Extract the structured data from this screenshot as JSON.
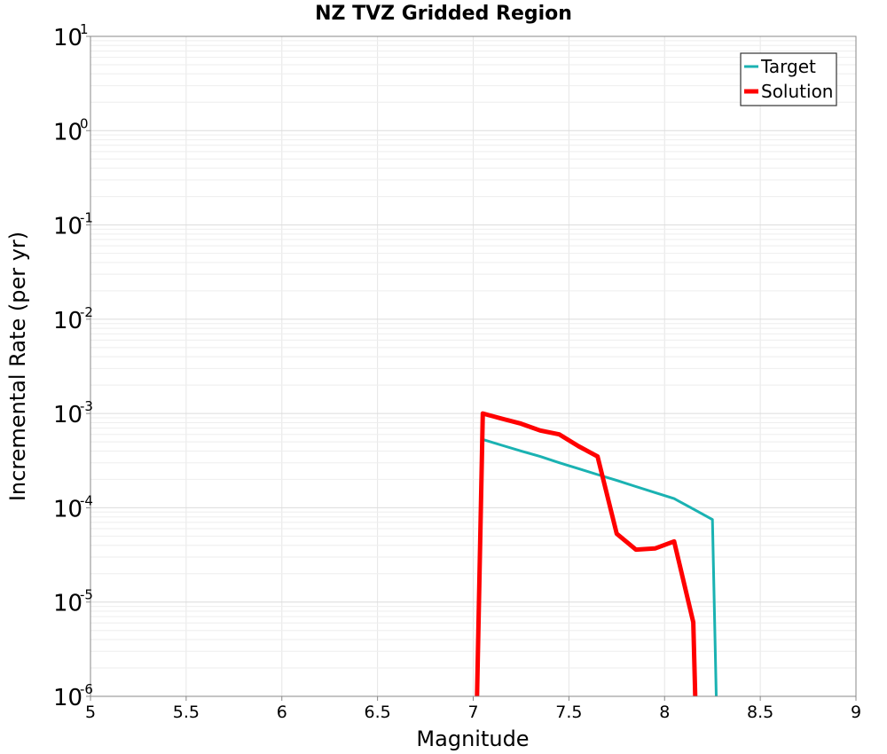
{
  "chart_data": {
    "type": "line",
    "title": "NZ TVZ Gridded Region",
    "xlabel": "Magnitude",
    "ylabel": "Incremental Rate (per yr)",
    "xlim": [
      5,
      9
    ],
    "ylim": [
      1e-06,
      10
    ],
    "yscale": "log",
    "grid": true,
    "legend_position": "top-right",
    "xticks": [
      "5",
      "5.5",
      "6",
      "6.5",
      "7",
      "7.5",
      "8",
      "8.5",
      "9"
    ],
    "xtick_values": [
      5,
      5.5,
      6,
      6.5,
      7,
      7.5,
      8,
      8.5,
      9
    ],
    "ytick_values": [
      1e-06,
      1e-05,
      0.0001,
      0.001,
      0.01,
      0.1,
      1,
      10
    ],
    "ytick_bases": [
      "10",
      "10",
      "10",
      "10",
      "10",
      "10",
      "10",
      "10"
    ],
    "ytick_exponents": [
      "-6",
      "-5",
      "-4",
      "-3",
      "-2",
      "-1",
      "0",
      "1"
    ],
    "series": [
      {
        "name": "Target",
        "color": "#1ab2b2",
        "x": [
          7.05,
          7.15,
          7.25,
          7.35,
          7.45,
          7.55,
          7.65,
          7.75,
          7.85,
          7.95,
          8.05,
          8.15,
          8.25,
          8.27
        ],
        "y": [
          0.00053,
          0.00046,
          0.0004,
          0.00035,
          0.0003,
          0.00026,
          0.000225,
          0.000195,
          0.000168,
          0.000145,
          0.000125,
          9.7e-05,
          7.5e-05,
          1e-06
        ]
      },
      {
        "name": "Solution",
        "color": "#ff0000",
        "x": [
          7.02,
          7.05,
          7.15,
          7.25,
          7.35,
          7.45,
          7.55,
          7.65,
          7.75,
          7.85,
          7.95,
          8.05,
          8.15,
          8.16
        ],
        "y": [
          1e-06,
          0.001,
          0.00088,
          0.00078,
          0.00066,
          0.0006,
          0.00045,
          0.00035,
          5.3e-05,
          3.6e-05,
          3.7e-05,
          4.4e-05,
          6.1e-06,
          1e-06
        ]
      }
    ]
  }
}
